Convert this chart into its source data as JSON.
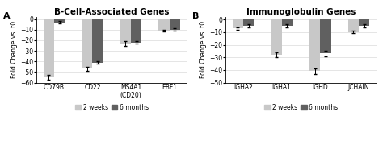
{
  "panel_A": {
    "title": "B-Cell-Associated Genes",
    "categories": [
      "CD79B",
      "CD22",
      "MS4A1\n(CD20)",
      "EBF1"
    ],
    "values_2weeks": [
      -55,
      -47,
      -23,
      -11
    ],
    "values_6months": [
      -3,
      -41,
      -22,
      -10
    ],
    "err_2weeks": [
      2,
      2,
      2,
      1
    ],
    "err_6months": [
      1,
      1,
      1,
      1
    ],
    "ylim": [
      -60,
      2
    ],
    "yticks": [
      0,
      -10,
      -20,
      -30,
      -40,
      -50,
      -60
    ],
    "ylabel": "Fold Change vs. t0"
  },
  "panel_B": {
    "title": "Immunoglobulin Genes",
    "categories": [
      "IGHA2",
      "IGHA1",
      "IGHD",
      "JCHAIN"
    ],
    "values_2weeks": [
      -7,
      -28,
      -41,
      -10
    ],
    "values_6months": [
      -5,
      -5,
      -27,
      -5
    ],
    "err_2weeks": [
      1,
      2,
      2,
      1
    ],
    "err_6months": [
      1,
      1,
      2,
      1
    ],
    "ylim": [
      -50,
      2
    ],
    "yticks": [
      0,
      -10,
      -20,
      -30,
      -40,
      -50
    ],
    "ylabel": "Fold Change vs. t0"
  },
  "color_2weeks": "#c8c8c8",
  "color_6months": "#606060",
  "bar_width": 0.28,
  "label_2weeks": "2 weeks",
  "label_6months": "6 months",
  "label_A": "A",
  "label_B": "B",
  "background_color": "#ffffff",
  "grid_color": "#e0e0e0"
}
